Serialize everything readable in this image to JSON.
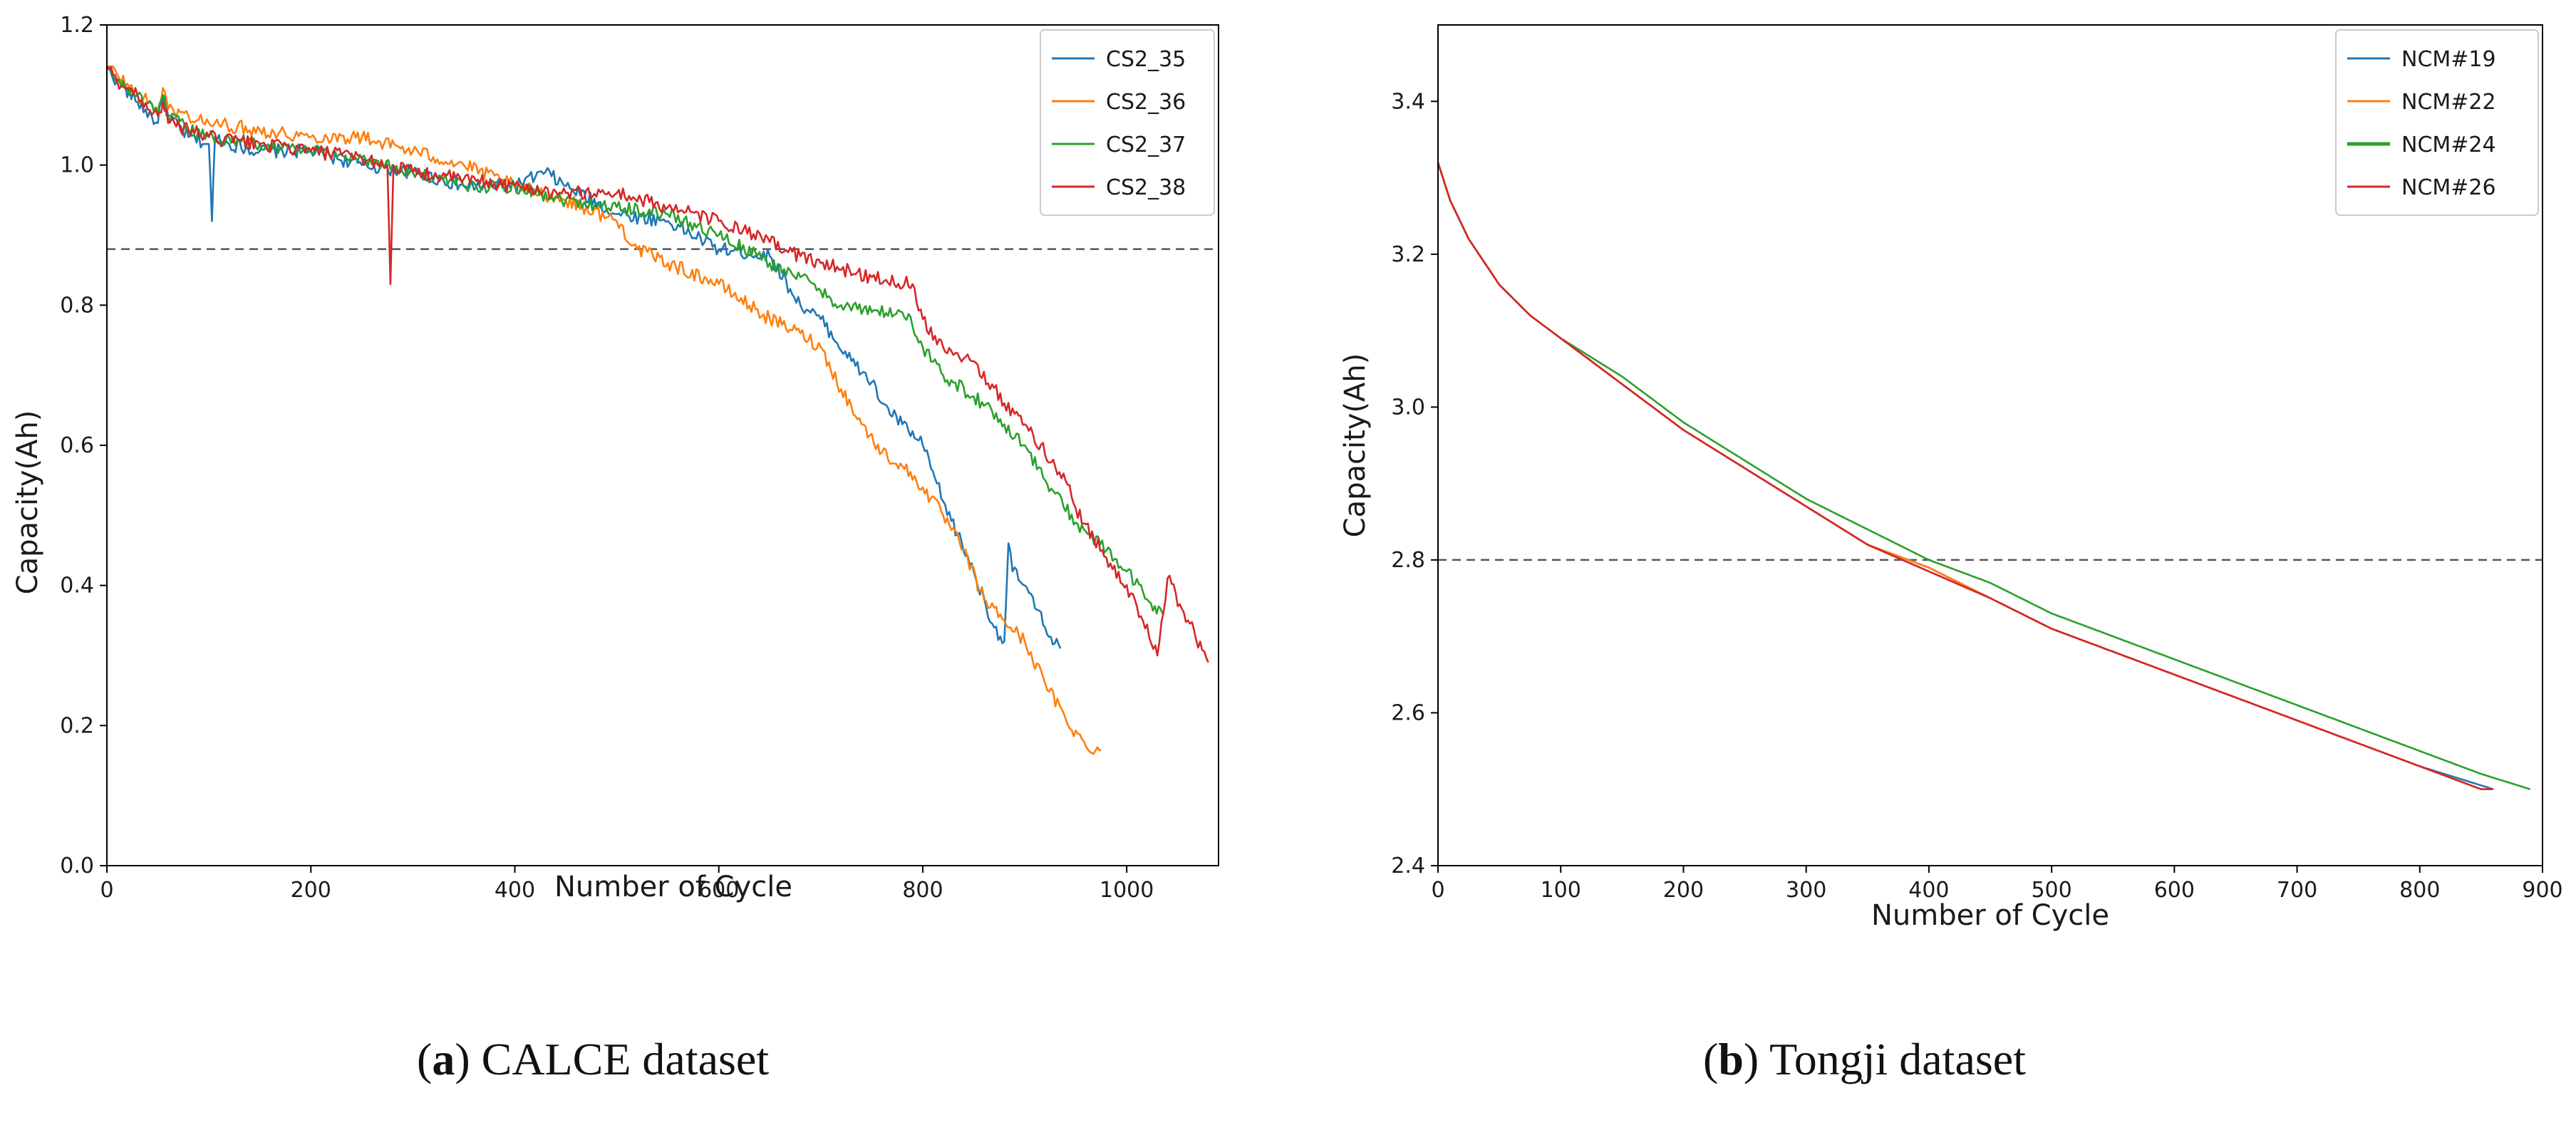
{
  "chart_data": [
    {
      "type": "line",
      "panel": "a",
      "caption_letter": "a",
      "caption_text": "CALCE dataset",
      "xlabel": "Number of Cycle",
      "ylabel": "Capacity(Ah)",
      "xlim": [
        0,
        1090
      ],
      "ylim": [
        0.0,
        1.2
      ],
      "xticks": [
        0,
        200,
        400,
        600,
        800,
        1000
      ],
      "yticks": [
        0.0,
        0.2,
        0.4,
        0.6,
        0.8,
        1.0,
        1.2
      ],
      "ytick_labels": [
        "0.0",
        "0.2",
        "0.4",
        "0.6",
        "0.8",
        "1.0",
        "1.2"
      ],
      "threshold": 0.88,
      "legend_position": "top-right",
      "noise": 0.01,
      "series": [
        {
          "name": "CS2_35",
          "color": "#1f77b4",
          "x": [
            0,
            10,
            30,
            50,
            55,
            60,
            80,
            100,
            103,
            106,
            120,
            150,
            200,
            250,
            300,
            350,
            400,
            430,
            450,
            500,
            550,
            600,
            650,
            680,
            700,
            730,
            750,
            760,
            780,
            800,
            820,
            850,
            870,
            880,
            884,
            888,
            900,
            920,
            935
          ],
          "y": [
            1.14,
            1.12,
            1.09,
            1.06,
            1.1,
            1.07,
            1.04,
            1.03,
            0.92,
            1.04,
            1.03,
            1.02,
            1.02,
            1.0,
            0.99,
            0.97,
            0.97,
            0.99,
            0.97,
            0.93,
            0.92,
            0.88,
            0.87,
            0.8,
            0.78,
            0.72,
            0.69,
            0.66,
            0.63,
            0.6,
            0.52,
            0.42,
            0.34,
            0.32,
            0.46,
            0.42,
            0.4,
            0.34,
            0.31
          ]
        },
        {
          "name": "CS2_36",
          "color": "#ff7f0e",
          "x": [
            0,
            10,
            30,
            50,
            55,
            60,
            80,
            100,
            150,
            200,
            250,
            300,
            350,
            400,
            450,
            500,
            520,
            550,
            600,
            650,
            680,
            700,
            720,
            740,
            760,
            780,
            800,
            820,
            840,
            860,
            880,
            900,
            920,
            940,
            960,
            975
          ],
          "y": [
            1.14,
            1.13,
            1.1,
            1.08,
            1.11,
            1.08,
            1.07,
            1.06,
            1.05,
            1.04,
            1.04,
            1.02,
            1.0,
            0.97,
            0.95,
            0.92,
            0.88,
            0.86,
            0.83,
            0.78,
            0.76,
            0.74,
            0.68,
            0.63,
            0.59,
            0.57,
            0.54,
            0.5,
            0.45,
            0.38,
            0.35,
            0.32,
            0.26,
            0.21,
            0.17,
            0.165
          ]
        },
        {
          "name": "CS2_37",
          "color": "#2ca02c",
          "x": [
            0,
            10,
            30,
            50,
            55,
            60,
            80,
            100,
            150,
            200,
            250,
            300,
            350,
            400,
            450,
            500,
            550,
            600,
            650,
            680,
            700,
            720,
            750,
            780,
            790,
            800,
            820,
            850,
            880,
            900,
            920,
            950,
            980,
            1000,
            1020,
            1035
          ],
          "y": [
            1.14,
            1.12,
            1.1,
            1.07,
            1.1,
            1.07,
            1.05,
            1.04,
            1.03,
            1.02,
            1.01,
            0.99,
            0.97,
            0.97,
            0.95,
            0.94,
            0.93,
            0.9,
            0.86,
            0.84,
            0.82,
            0.8,
            0.79,
            0.79,
            0.77,
            0.74,
            0.7,
            0.67,
            0.63,
            0.6,
            0.55,
            0.49,
            0.45,
            0.42,
            0.38,
            0.36
          ]
        },
        {
          "name": "CS2_38",
          "color": "#d62728",
          "x": [
            0,
            10,
            30,
            50,
            55,
            60,
            80,
            100,
            150,
            200,
            250,
            275,
            278,
            281,
            300,
            350,
            400,
            450,
            500,
            550,
            600,
            650,
            680,
            700,
            750,
            790,
            800,
            820,
            850,
            880,
            900,
            940,
            950,
            980,
            1010,
            1030,
            1040,
            1060,
            1080
          ],
          "y": [
            1.14,
            1.12,
            1.1,
            1.07,
            1.09,
            1.06,
            1.05,
            1.04,
            1.03,
            1.02,
            1.01,
            1.0,
            0.83,
            1.0,
            0.99,
            0.98,
            0.97,
            0.96,
            0.96,
            0.94,
            0.92,
            0.89,
            0.87,
            0.86,
            0.84,
            0.83,
            0.78,
            0.74,
            0.72,
            0.66,
            0.63,
            0.55,
            0.51,
            0.44,
            0.37,
            0.3,
            0.41,
            0.35,
            0.29
          ]
        }
      ]
    },
    {
      "type": "line",
      "panel": "b",
      "caption_letter": "b",
      "caption_text": "Tongji dataset",
      "xlabel": "Number of Cycle",
      "ylabel": "Capacity(Ah)",
      "xlim": [
        0,
        900
      ],
      "ylim": [
        2.4,
        3.5
      ],
      "xticks": [
        0,
        100,
        200,
        300,
        400,
        500,
        600,
        700,
        800,
        900
      ],
      "yticks": [
        2.4,
        2.6,
        2.8,
        3.0,
        3.2,
        3.4
      ],
      "ytick_labels": [
        "2.4",
        "2.6",
        "2.8",
        "3.0",
        "3.2",
        "3.4"
      ],
      "threshold": 2.8,
      "legend_position": "top-right",
      "noise": 0,
      "series": [
        {
          "name": "NCM#19",
          "color": "#1f77b4",
          "x": [
            0,
            10,
            25,
            50,
            75,
            100,
            150,
            200,
            250,
            300,
            350,
            400,
            450,
            500,
            550,
            600,
            650,
            700,
            750,
            800,
            850,
            860
          ],
          "y": [
            3.32,
            3.27,
            3.22,
            3.16,
            3.12,
            3.09,
            3.03,
            2.97,
            2.92,
            2.87,
            2.82,
            2.79,
            2.75,
            2.71,
            2.68,
            2.65,
            2.62,
            2.59,
            2.56,
            2.53,
            2.505,
            2.5
          ]
        },
        {
          "name": "NCM#22",
          "color": "#ff7f0e",
          "x": [
            0,
            10,
            25,
            50,
            75,
            100,
            150,
            200,
            250,
            300,
            350,
            400,
            450,
            500,
            550,
            600,
            650,
            700,
            750,
            800,
            850,
            855
          ],
          "y": [
            3.32,
            3.27,
            3.22,
            3.16,
            3.12,
            3.09,
            3.03,
            2.97,
            2.92,
            2.87,
            2.82,
            2.79,
            2.75,
            2.71,
            2.68,
            2.65,
            2.62,
            2.59,
            2.56,
            2.53,
            2.5,
            2.5
          ]
        },
        {
          "name": "NCM#24",
          "color": "#2ca02c",
          "x": [
            0,
            10,
            25,
            50,
            75,
            100,
            150,
            200,
            250,
            300,
            350,
            400,
            450,
            500,
            550,
            600,
            650,
            700,
            750,
            800,
            850,
            890
          ],
          "y": [
            3.32,
            3.27,
            3.22,
            3.16,
            3.12,
            3.09,
            3.04,
            2.98,
            2.93,
            2.88,
            2.84,
            2.8,
            2.77,
            2.73,
            2.7,
            2.67,
            2.64,
            2.61,
            2.58,
            2.55,
            2.52,
            2.5
          ]
        },
        {
          "name": "NCM#26",
          "color": "#d62728",
          "x": [
            0,
            10,
            25,
            50,
            75,
            100,
            150,
            200,
            250,
            300,
            350,
            400,
            450,
            500,
            550,
            600,
            650,
            700,
            750,
            800,
            850,
            860
          ],
          "y": [
            3.32,
            3.27,
            3.22,
            3.16,
            3.12,
            3.09,
            3.03,
            2.97,
            2.92,
            2.87,
            2.82,
            2.785,
            2.75,
            2.71,
            2.68,
            2.65,
            2.62,
            2.59,
            2.56,
            2.53,
            2.5,
            2.5
          ]
        }
      ]
    }
  ]
}
